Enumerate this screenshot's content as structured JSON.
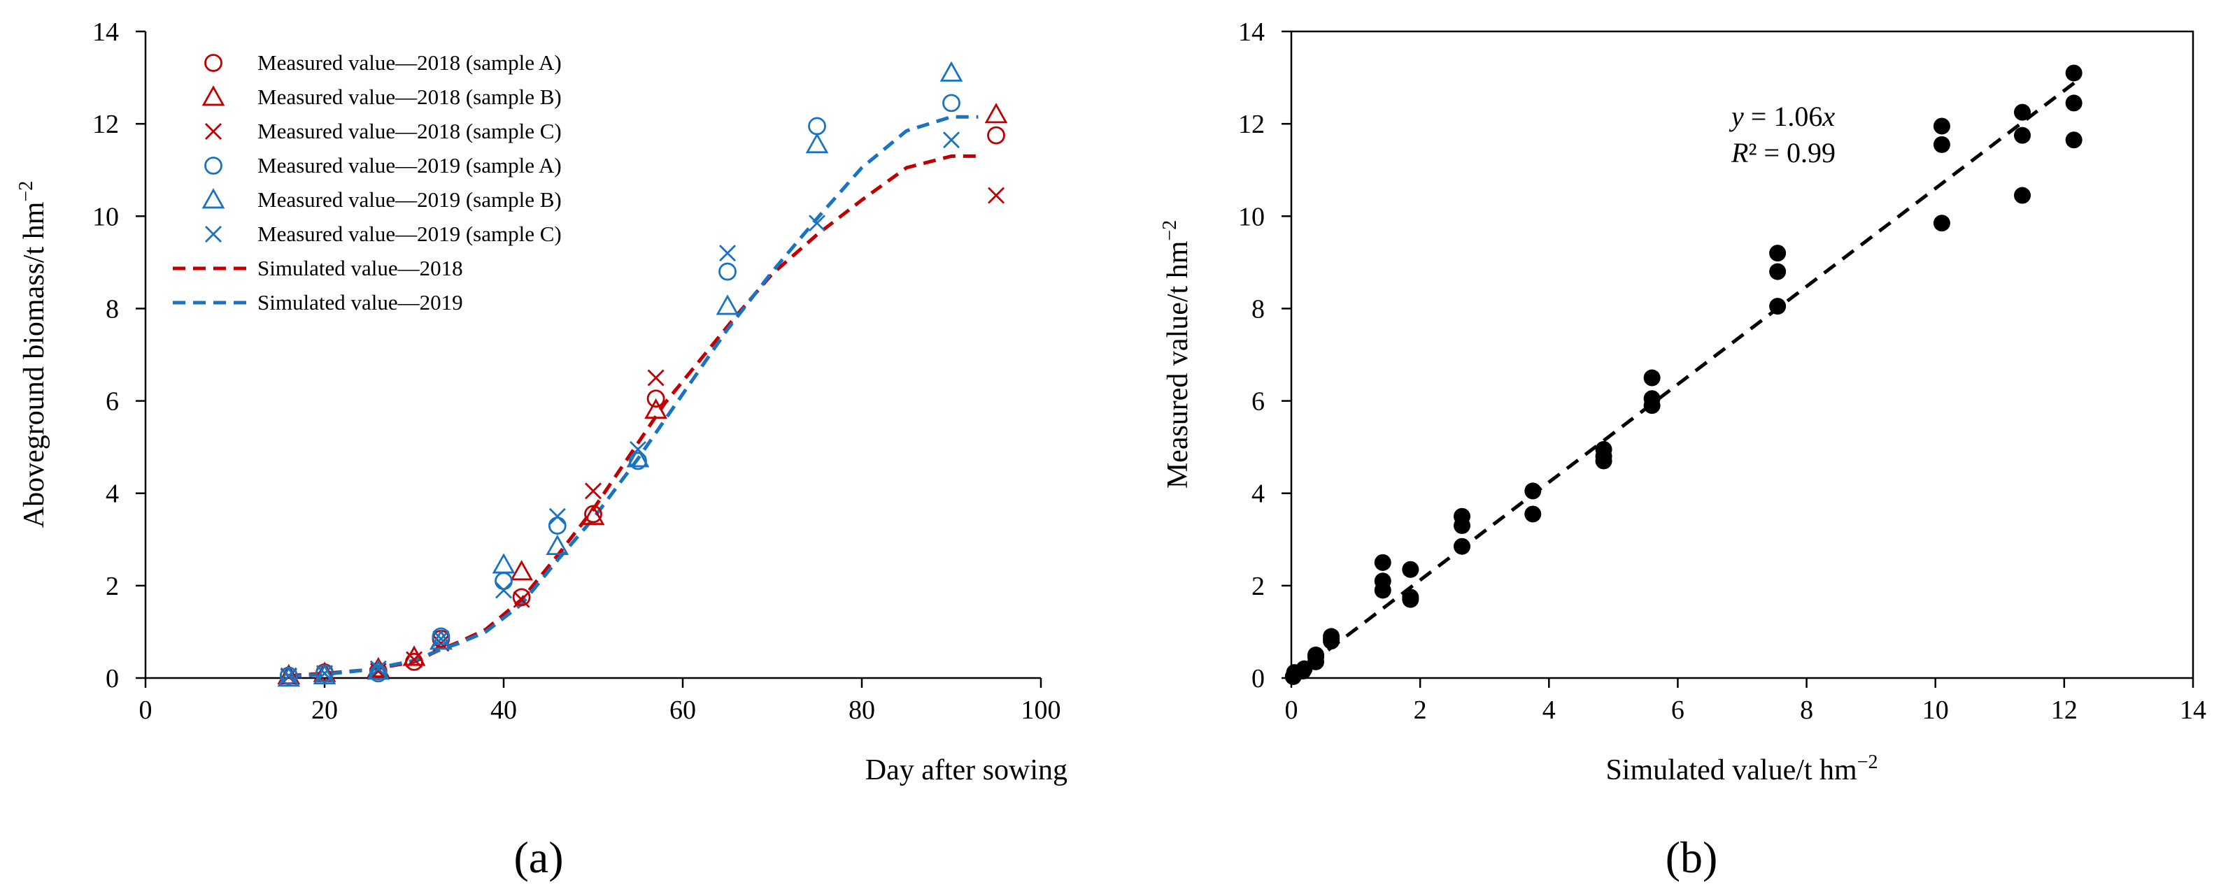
{
  "colors": {
    "y2018": "#c00000",
    "y2019": "#1a73c0",
    "black": "#000000"
  },
  "panel_labels": {
    "a": "(a)",
    "b": "(b)"
  },
  "chart_data": [
    {
      "type": "scatter",
      "title": "",
      "xlabel": "Day after sowing",
      "ylabel": "Aboveground biomass/t hm",
      "ylabel_sup": "−2",
      "xlim": [
        0,
        100
      ],
      "ylim": [
        0,
        14
      ],
      "xticks": [
        0,
        20,
        40,
        60,
        80,
        100
      ],
      "yticks": [
        0,
        2,
        4,
        6,
        8,
        10,
        12,
        14
      ],
      "grid": false,
      "legend_position": "top-left",
      "series": [
        {
          "name": "Measured value—2018 (sample A)",
          "marker": "circle",
          "color": "#c00000",
          "x": [
            16,
            20,
            26,
            30,
            33,
            42,
            50,
            57,
            95
          ],
          "y": [
            0.05,
            0.12,
            0.15,
            0.35,
            0.85,
            1.75,
            3.55,
            6.05,
            11.75
          ]
        },
        {
          "name": "Measured value—2018 (sample B)",
          "marker": "triangle",
          "color": "#c00000",
          "x": [
            16,
            20,
            26,
            30,
            33,
            42,
            50,
            57,
            95
          ],
          "y": [
            0.05,
            0.1,
            0.2,
            0.45,
            0.8,
            2.3,
            3.5,
            5.8,
            12.2
          ]
        },
        {
          "name": "Measured value—2018 (sample C)",
          "marker": "x",
          "color": "#c00000",
          "x": [
            16,
            20,
            26,
            30,
            33,
            42,
            50,
            57,
            95
          ],
          "y": [
            0.03,
            0.1,
            0.15,
            0.4,
            0.75,
            1.7,
            4.05,
            6.5,
            10.45
          ]
        },
        {
          "name": "Measured value—2019 (sample A)",
          "marker": "circle",
          "color": "#1a73c0",
          "x": [
            16,
            20,
            26,
            33,
            40,
            46,
            55,
            65,
            75,
            90
          ],
          "y": [
            0.05,
            0.1,
            0.1,
            0.9,
            2.1,
            3.3,
            4.7,
            8.8,
            11.95,
            12.45
          ]
        },
        {
          "name": "Measured value—2019 (sample B)",
          "marker": "triangle",
          "color": "#1a73c0",
          "x": [
            16,
            20,
            26,
            33,
            40,
            46,
            55,
            65,
            75,
            90
          ],
          "y": [
            0.0,
            0.05,
            0.15,
            0.8,
            2.45,
            2.85,
            4.75,
            8.05,
            11.55,
            13.1
          ]
        },
        {
          "name": "Measured value—2019 (sample C)",
          "marker": "x",
          "color": "#1a73c0",
          "x": [
            16,
            20,
            26,
            33,
            40,
            46,
            55,
            65,
            75,
            90
          ],
          "y": [
            0.05,
            0.1,
            0.2,
            0.85,
            1.9,
            3.5,
            4.95,
            9.2,
            9.85,
            11.65
          ]
        },
        {
          "name": "Simulated value—2018",
          "marker": "dashed-line",
          "color": "#c00000",
          "x": [
            16,
            20,
            25,
            30,
            33,
            35,
            38,
            42,
            46,
            50,
            54,
            58,
            62,
            66,
            70,
            75,
            80,
            85,
            90,
            93
          ],
          "y": [
            0.05,
            0.1,
            0.18,
            0.35,
            0.62,
            0.78,
            1.05,
            1.7,
            2.65,
            3.65,
            4.8,
            5.95,
            6.9,
            7.85,
            8.75,
            9.6,
            10.35,
            11.05,
            11.3,
            11.3
          ]
        },
        {
          "name": "Simulated value—2019",
          "marker": "dashed-line",
          "color": "#1a73c0",
          "x": [
            16,
            20,
            25,
            30,
            33,
            35,
            38,
            42,
            46,
            50,
            55,
            60,
            65,
            70,
            75,
            80,
            85,
            90,
            93
          ],
          "y": [
            0.03,
            0.08,
            0.18,
            0.38,
            0.62,
            0.75,
            1.0,
            1.6,
            2.55,
            3.45,
            4.75,
            6.15,
            7.55,
            8.8,
            9.95,
            11.05,
            11.85,
            12.15,
            12.15
          ]
        }
      ]
    },
    {
      "type": "scatter",
      "title": "",
      "xlabel": "Simulated value/t hm",
      "xlabel_sup": "−2",
      "ylabel": "Measured value/t hm",
      "ylabel_sup": "−2",
      "xlim": [
        0,
        14
      ],
      "ylim": [
        0,
        14
      ],
      "xticks": [
        0,
        2,
        4,
        6,
        8,
        10,
        12,
        14
      ],
      "yticks": [
        0,
        2,
        4,
        6,
        8,
        10,
        12,
        14
      ],
      "grid": false,
      "annotation": {
        "eq_var": "y",
        "eq_rest": " = 1.06",
        "eq_x": "x",
        "r2_var": "R",
        "r2_rest": "² = 0.99"
      },
      "fit": {
        "slope": 1.06,
        "x_range": [
          0,
          12.2
        ]
      },
      "points": {
        "x": [
          0.03,
          0.05,
          0.05,
          0.18,
          0.2,
          0.38,
          0.38,
          0.38,
          0.62,
          0.62,
          0.62,
          1.42,
          1.42,
          1.42,
          1.85,
          1.85,
          1.85,
          2.65,
          2.65,
          2.65,
          3.75,
          3.75,
          4.85,
          4.85,
          4.85,
          5.6,
          5.6,
          5.6,
          7.55,
          7.55,
          7.55,
          10.1,
          10.1,
          10.1,
          11.35,
          11.35,
          11.35,
          12.15,
          12.15,
          12.15
        ],
        "y": [
          0.03,
          0.08,
          0.12,
          0.15,
          0.2,
          0.35,
          0.45,
          0.5,
          0.8,
          0.85,
          0.9,
          1.9,
          2.1,
          2.5,
          1.7,
          1.75,
          2.35,
          2.85,
          3.3,
          3.5,
          3.55,
          4.05,
          4.7,
          4.8,
          4.95,
          5.9,
          6.05,
          6.5,
          8.05,
          8.8,
          9.2,
          9.85,
          11.55,
          11.95,
          10.45,
          11.75,
          12.25,
          11.65,
          12.45,
          13.1
        ]
      }
    }
  ]
}
